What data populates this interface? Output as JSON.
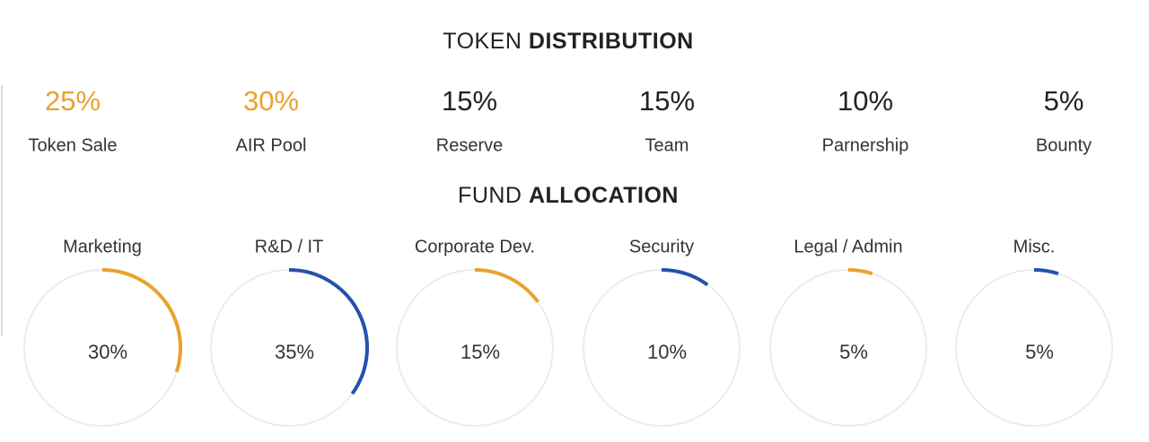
{
  "token_distribution": {
    "title": [
      "TOKEN",
      "DISTRIBUTION"
    ],
    "items": [
      {
        "label": "25%",
        "name": "Token Sale",
        "color": "#e9a22f"
      },
      {
        "label": "30%",
        "name": "AIR Pool",
        "color": "#e9a22f"
      },
      {
        "label": "15%",
        "name": "Reserve",
        "color": "#222222"
      },
      {
        "label": "15%",
        "name": "Team",
        "color": "#222222"
      },
      {
        "label": "10%",
        "name": "Parnership",
        "color": "#222222"
      },
      {
        "label": "5%",
        "name": "Bounty",
        "color": "#222222"
      }
    ]
  },
  "fund_allocation": {
    "title": [
      "FUND",
      "ALLOCATION"
    ],
    "items": [
      {
        "name": "Marketing",
        "value": 30,
        "label": "30%",
        "color": "#e9a22f"
      },
      {
        "name": "R&D / IT",
        "value": 35,
        "label": "35%",
        "color": "#2352ab"
      },
      {
        "name": "Corporate Dev.",
        "value": 15,
        "label": "15%",
        "color": "#e9a22f"
      },
      {
        "name": "Security",
        "value": 10,
        "label": "10%",
        "color": "#2352ab"
      },
      {
        "name": "Legal / Admin",
        "value": 5,
        "label": "5%",
        "color": "#e9a22f"
      },
      {
        "name": "Misc.",
        "value": 5,
        "label": "5%",
        "color": "#2352ab"
      }
    ]
  }
}
